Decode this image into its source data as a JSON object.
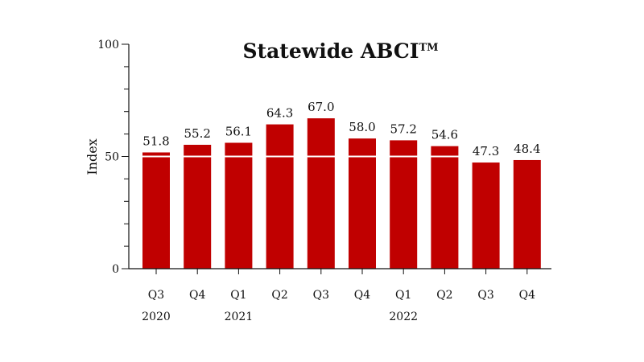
{
  "chart_data": {
    "type": "bar",
    "title": "Statewide ABCI",
    "title_mark": "TM",
    "xlabel": "",
    "ylabel": "Index",
    "ylim": [
      0,
      100
    ],
    "y_major_ticks": [
      0,
      50,
      100
    ],
    "y_minor_step": 10,
    "reference_line": 50,
    "categories": [
      "Q3",
      "Q4",
      "Q1",
      "Q2",
      "Q3",
      "Q4",
      "Q1",
      "Q2",
      "Q3",
      "Q4"
    ],
    "years": [
      "2020",
      "",
      "2021",
      "",
      "",
      "",
      "2022",
      "",
      "",
      ""
    ],
    "values": [
      51.8,
      55.2,
      56.1,
      64.3,
      67.0,
      58.0,
      57.2,
      54.6,
      47.3,
      48.4
    ],
    "value_labels": [
      "51.8",
      "55.2",
      "56.1",
      "64.3",
      "67.0",
      "58.0",
      "57.2",
      "54.6",
      "47.3",
      "48.4"
    ],
    "grid": false,
    "legend": "none",
    "colors": {
      "bar": "#c00000",
      "reference_line": "#ffffff",
      "axis": "#111111"
    }
  }
}
